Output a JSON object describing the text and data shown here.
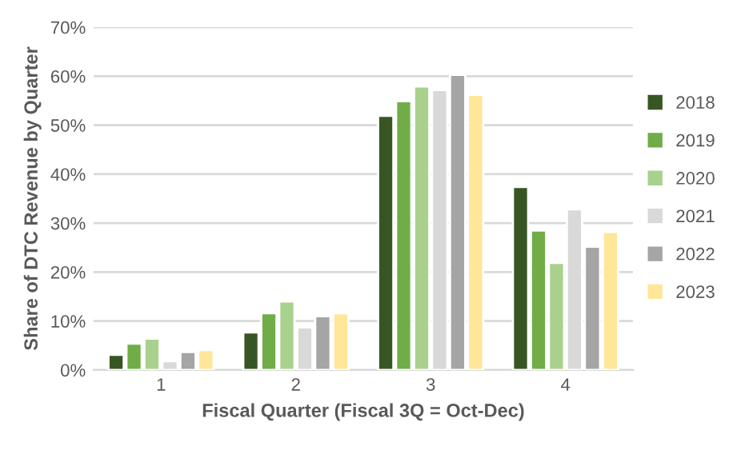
{
  "chart_data": {
    "type": "bar",
    "xlabel": "Fiscal Quarter (Fiscal 3Q = Oct-Dec)",
    "ylabel": "Share of DTC Revenue by Quarter",
    "categories": [
      "1",
      "2",
      "3",
      "4"
    ],
    "series": [
      {
        "name": "2018",
        "color": "#375623",
        "values": [
          3.1,
          7.7,
          51.9,
          37.4
        ]
      },
      {
        "name": "2019",
        "color": "#70ad47",
        "values": [
          5.4,
          11.6,
          54.9,
          28.5
        ]
      },
      {
        "name": "2020",
        "color": "#a9d18e",
        "values": [
          6.4,
          14.0,
          57.9,
          21.9
        ]
      },
      {
        "name": "2021",
        "color": "#d9d9d9",
        "values": [
          1.8,
          8.7,
          57.2,
          32.8
        ]
      },
      {
        "name": "2022",
        "color": "#a5a5a5",
        "values": [
          3.7,
          11.0,
          60.3,
          25.2
        ]
      },
      {
        "name": "2023",
        "color": "#ffe699",
        "values": [
          4.1,
          11.6,
          56.2,
          28.2
        ]
      }
    ],
    "ylim": [
      0,
      70
    ],
    "yticks": [
      {
        "value": 0,
        "label": "0%"
      },
      {
        "value": 10,
        "label": "10%"
      },
      {
        "value": 20,
        "label": "20%"
      },
      {
        "value": 30,
        "label": "30%"
      },
      {
        "value": 40,
        "label": "40%"
      },
      {
        "value": 50,
        "label": "50%"
      },
      {
        "value": 60,
        "label": "60%"
      },
      {
        "value": 70,
        "label": "70%"
      }
    ],
    "grid": "y",
    "legend": "right"
  }
}
